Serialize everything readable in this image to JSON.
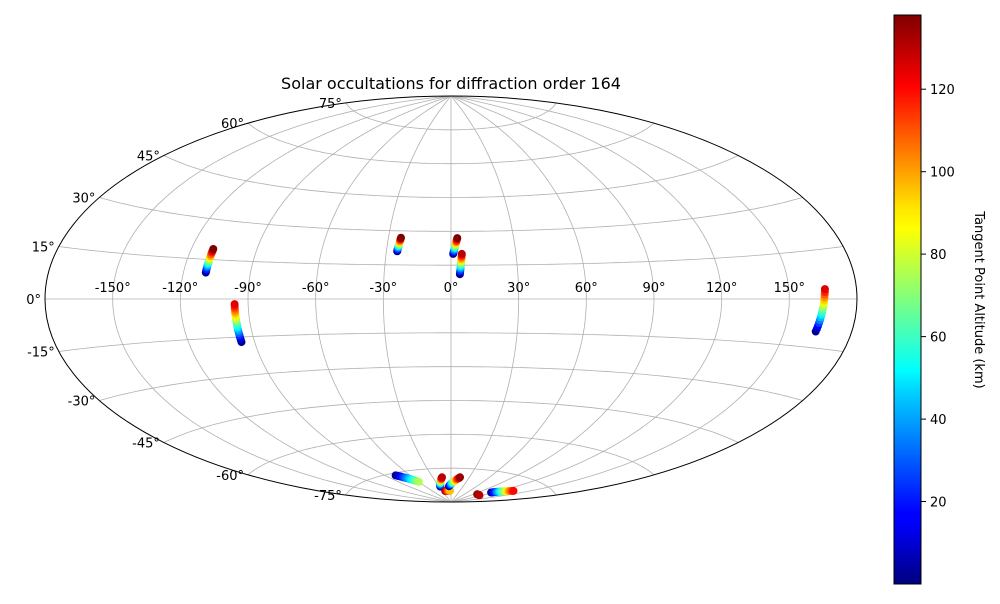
{
  "chart_data": {
    "type": "scatter",
    "projection": "aitoff",
    "title": "Solar occultations for diffraction order 164",
    "xlabel": "",
    "ylabel": "",
    "grid": true,
    "lon_ticks": [
      -150,
      -120,
      -90,
      -60,
      -30,
      0,
      30,
      60,
      90,
      120,
      150
    ],
    "lon_tick_labels": [
      "-150°",
      "-120°",
      "-90°",
      "-60°",
      "-30°",
      "0°",
      "30°",
      "60°",
      "90°",
      "120°",
      "150°"
    ],
    "lat_ticks": [
      -75,
      -60,
      -45,
      -30,
      -15,
      0,
      15,
      30,
      45,
      60,
      75
    ],
    "lat_tick_labels": [
      "-75°",
      "-60°",
      "-45°",
      "-30°",
      "-15°",
      "0°",
      "15°",
      "30°",
      "45°",
      "60°",
      "75°"
    ],
    "colorbar": {
      "label": "Tangent Point Altitude (km)",
      "colormap": "jet",
      "range": [
        0,
        138
      ],
      "ticks": [
        20,
        40,
        60,
        80,
        100,
        120
      ],
      "tick_labels": [
        "20",
        "40",
        "60",
        "80",
        "100",
        "120"
      ]
    },
    "series": [
      {
        "lon_range": [
          -110,
          -110
        ],
        "lat_range": [
          10,
          19
        ],
        "alt_range": [
          1,
          138
        ],
        "points": 14
      },
      {
        "lon_range": [
          -96,
          -96
        ],
        "lat_range": [
          -17,
          -2
        ],
        "alt_range": [
          1,
          125
        ],
        "points": 18
      },
      {
        "lon_range": [
          -25,
          -24
        ],
        "lat_range": [
          21,
          27
        ],
        "alt_range": [
          1,
          138
        ],
        "points": 12
      },
      {
        "lon_range": [
          1,
          3
        ],
        "lat_range": [
          20,
          27
        ],
        "alt_range": [
          1,
          138
        ],
        "points": 12
      },
      {
        "lon_range": [
          4,
          5
        ],
        "lat_range": [
          11,
          20
        ],
        "alt_range": [
          1,
          130
        ],
        "points": 12
      },
      {
        "lon_range": [
          164,
          166
        ],
        "lat_range": [
          -10,
          3
        ],
        "alt_range": [
          1,
          125
        ],
        "points": 16
      },
      {
        "lon_range": [
          -78,
          -60
        ],
        "lat_range": [
          -76,
          -80
        ],
        "alt_range": [
          1,
          75
        ],
        "points": 18
      },
      {
        "lon_range": [
          -27,
          -15
        ],
        "lat_range": [
          -83,
          -79
        ],
        "alt_range": [
          1,
          130
        ],
        "points": 14
      },
      {
        "lon_range": [
          -20,
          -3
        ],
        "lat_range": [
          -85,
          -85
        ],
        "alt_range": [
          138,
          95
        ],
        "points": 16
      },
      {
        "lon_range": [
          -5,
          15
        ],
        "lat_range": [
          -83,
          -79
        ],
        "alt_range": [
          1,
          135
        ],
        "points": 18
      },
      {
        "lon_range": [
          115,
          135
        ],
        "lat_range": [
          -83,
          -80
        ],
        "alt_range": [
          1,
          120
        ],
        "points": 20
      },
      {
        "lon_range": [
          100,
          112
        ],
        "lat_range": [
          -85,
          -85
        ],
        "alt_range": [
          138,
          130
        ],
        "points": 6
      }
    ]
  }
}
